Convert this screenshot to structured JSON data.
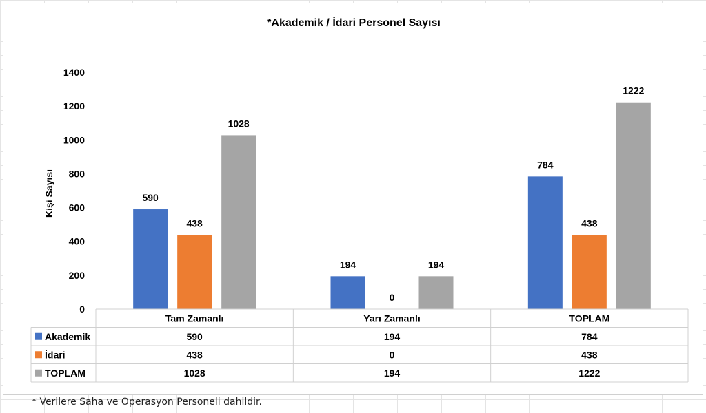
{
  "footnote": "* Verilere Saha ve Operasyon Personeli dahildir.",
  "chart_data": {
    "type": "bar",
    "title": "*Akademik / İdari Personel Sayısı",
    "xlabel": "",
    "ylabel": "Kişi Sayısı",
    "ylim": [
      0,
      1400
    ],
    "yticks": [
      0,
      200,
      400,
      600,
      800,
      1000,
      1200,
      1400
    ],
    "grid": false,
    "legend": "data-table",
    "categories": [
      "Tam Zamanlı",
      "Yarı Zamanlı",
      "TOPLAM"
    ],
    "series": [
      {
        "name": "Akademik",
        "color": "#4472C4",
        "values": [
          590,
          194,
          784
        ]
      },
      {
        "name": "İdari",
        "color": "#ED7D31",
        "values": [
          438,
          0,
          438
        ]
      },
      {
        "name": "TOPLAM",
        "color": "#A5A5A5",
        "values": [
          1028,
          194,
          1222
        ]
      }
    ],
    "data_labels": true
  }
}
